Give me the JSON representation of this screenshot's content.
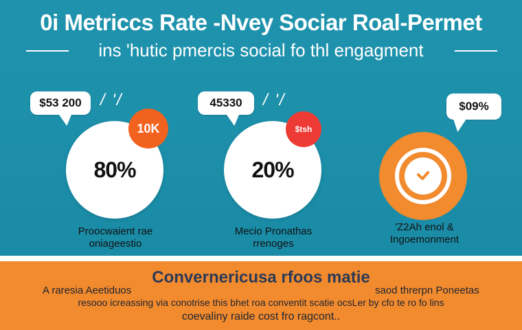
{
  "header": {
    "title": "0i Metriccs Rate -Nvey Sociar Roal-Permet",
    "subtitle": "ins 'hutic pmercis social fo thl engagment"
  },
  "metrics": [
    {
      "bubble": "$53 200",
      "mark": "/ '/",
      "value": "80%",
      "badge": "10K",
      "badge_color": "#f2621f",
      "caption_line1": "Proocwaient rae",
      "caption_line2": "oniageestio"
    },
    {
      "bubble": "45330",
      "mark": "/ '/",
      "value": "20%",
      "badge": "$tsh",
      "badge_color": "#ee3a34",
      "caption_line1": "Mecio Pronathas",
      "caption_line2": "rrenoges"
    },
    {
      "bubble": "$09%",
      "icon": "check-heart-icon",
      "caption_line1": "'Z2Ah enol &",
      "caption_line2": "Ingoemonment"
    }
  ],
  "footer": {
    "title": "Convernericusa rfoos matie",
    "left_line1": "A raresia Aeetiduos",
    "right_line1": "saod threrpn Poneetas",
    "line2": "resooo icreassing via conotrise this bhet roa conventit scatie ocsLer by cfo te ro fo lins",
    "line3": "coevaliny raide cost fro ragcont.."
  },
  "colors": {
    "teal": "#1a8fa8",
    "orange": "#f28a2e",
    "white": "#ffffff",
    "badge_orange": "#f2621f",
    "badge_red": "#ee3a34"
  }
}
